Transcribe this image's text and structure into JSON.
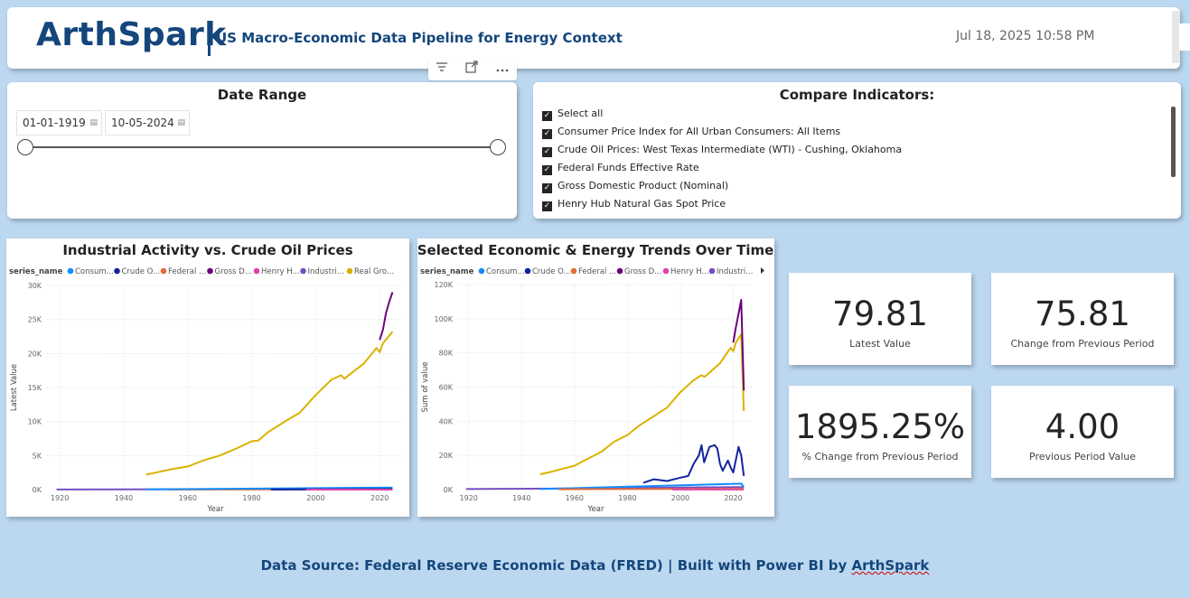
{
  "header": {
    "brand": "ArthSpark",
    "subtitle": "US Macro-Economic Data Pipeline for Energy Context",
    "timestamp": "Jul 18, 2025 10:58 PM"
  },
  "date_range": {
    "title": "Date Range",
    "start": "01-01-1919",
    "end": "10-05-2024",
    "slider_start_fraction": 0,
    "slider_end_fraction": 1
  },
  "indicators": {
    "title": "Compare Indicators:",
    "items": [
      {
        "label": "Select all",
        "checked": true
      },
      {
        "label": "Consumer Price Index for All Urban Consumers: All Items",
        "checked": true
      },
      {
        "label": "Crude Oil Prices: West Texas Intermediate (WTI) - Cushing, Oklahoma",
        "checked": true
      },
      {
        "label": "Federal Funds Effective Rate",
        "checked": true
      },
      {
        "label": "Gross Domestic Product (Nominal)",
        "checked": true
      },
      {
        "label": "Henry Hub Natural Gas Spot Price",
        "checked": true
      }
    ]
  },
  "chart1": {
    "title": "Industrial Activity vs. Crude Oil Prices",
    "legend_title": "series_name",
    "legend": [
      {
        "label": "Consum...",
        "color": "#118dff"
      },
      {
        "label": "Crude O...",
        "color": "#12239e"
      },
      {
        "label": "Federal ...",
        "color": "#e66c37"
      },
      {
        "label": "Gross D...",
        "color": "#6b007b"
      },
      {
        "label": "Henry H...",
        "color": "#e044a7"
      },
      {
        "label": "Industri...",
        "color": "#744ec2"
      },
      {
        "label": "Real Gro...",
        "color": "#d9b300"
      }
    ],
    "ylabel": "Latest Value",
    "xlabel": "Year",
    "yticks": [
      "30K",
      "25K",
      "20K",
      "15K",
      "10K",
      "5K",
      "0K"
    ],
    "xticks": [
      "1920",
      "1940",
      "1960",
      "1980",
      "2000",
      "2020"
    ]
  },
  "chart2": {
    "title": "Selected Economic & Energy Trends Over Time",
    "legend_title": "series_name",
    "legend": [
      {
        "label": "Consum...",
        "color": "#118dff"
      },
      {
        "label": "Crude O...",
        "color": "#12239e"
      },
      {
        "label": "Federal ...",
        "color": "#e66c37"
      },
      {
        "label": "Gross D...",
        "color": "#6b007b"
      },
      {
        "label": "Henry H...",
        "color": "#e044a7"
      },
      {
        "label": "Industri...",
        "color": "#744ec2"
      }
    ],
    "ylabel": "Sum of value",
    "xlabel": "Year",
    "yticks": [
      "120K",
      "100K",
      "80K",
      "60K",
      "40K",
      "20K",
      "0K"
    ],
    "xticks": [
      "1920",
      "1940",
      "1960",
      "1980",
      "2000",
      "2020"
    ]
  },
  "chart_data": [
    {
      "type": "line",
      "title": "Industrial Activity vs. Crude Oil Prices",
      "xlabel": "Year",
      "ylabel": "Latest Value",
      "xlim": [
        1916,
        2027
      ],
      "ylim": [
        0,
        30000
      ],
      "legend_title": "series_name",
      "legend_position": "top",
      "grid": true,
      "series": [
        {
          "name": "Real Gro...",
          "color": "#d9b300",
          "x": [
            1947,
            1950,
            1955,
            1960,
            1965,
            1970,
            1975,
            1980,
            1982,
            1985,
            1990,
            1995,
            2000,
            2005,
            2008,
            2009,
            2010,
            2015,
            2019,
            2020,
            2021,
            2024
          ],
          "y": [
            2200,
            2500,
            3000,
            3400,
            4300,
            5000,
            6000,
            7100,
            7200,
            8400,
            9900,
            11300,
            13900,
            16200,
            16800,
            16300,
            16700,
            18500,
            20800,
            20200,
            21500,
            23200
          ]
        },
        {
          "name": "Gross D...",
          "color": "#6b007b",
          "x": [
            2020,
            2021,
            2022,
            2023,
            2024
          ],
          "y": [
            22000,
            23500,
            26000,
            27600,
            29000
          ]
        },
        {
          "name": "Industri...",
          "color": "#744ec2",
          "x": [
            1919,
            2024
          ],
          "y": [
            10,
            100
          ]
        },
        {
          "name": "Federal ...",
          "color": "#e66c37",
          "x": [
            1954,
            2024
          ],
          "y": [
            10,
            50
          ]
        },
        {
          "name": "Consum...",
          "color": "#118dff",
          "x": [
            1947,
            2024
          ],
          "y": [
            20,
            310
          ]
        },
        {
          "name": "Crude O...",
          "color": "#12239e",
          "x": [
            1986,
            2024
          ],
          "y": [
            15,
            80
          ]
        },
        {
          "name": "Henry H...",
          "color": "#e044a7",
          "x": [
            1997,
            2024
          ],
          "y": [
            3,
            5
          ]
        }
      ]
    },
    {
      "type": "line",
      "title": "Selected Economic & Energy Trends Over Time",
      "xlabel": "Year",
      "ylabel": "Sum of value",
      "xlim": [
        1916,
        2027
      ],
      "ylim": [
        0,
        120000
      ],
      "legend_title": "series_name",
      "legend_position": "top",
      "grid": true,
      "series": [
        {
          "color": "#d9b300",
          "x": [
            1947,
            1950,
            1955,
            1960,
            1965,
            1970,
            1975,
            1980,
            1985,
            1990,
            1995,
            2000,
            2005,
            2008,
            2009,
            2010,
            2015,
            2019,
            2020,
            2021,
            2023,
            2024
          ],
          "y": [
            9000,
            10000,
            12000,
            14000,
            18000,
            22000,
            28000,
            32000,
            38000,
            43000,
            48000,
            57000,
            64000,
            67000,
            66000,
            67000,
            74000,
            83000,
            81000,
            86000,
            91000,
            46000
          ]
        },
        {
          "name": "Gross D...",
          "color": "#6b007b",
          "x": [
            2020,
            2021,
            2022,
            2023,
            2024
          ],
          "y": [
            86000,
            95000,
            103000,
            111000,
            58000
          ]
        },
        {
          "name": "Crude O...",
          "color": "#12239e",
          "x": [
            1986,
            1990,
            1995,
            2000,
            2003,
            2005,
            2007,
            2008,
            2009,
            2011,
            2013,
            2014,
            2015,
            2016,
            2018,
            2019,
            2020,
            2022,
            2023,
            2024
          ],
          "y": [
            4000,
            6000,
            5000,
            7000,
            8000,
            15000,
            20000,
            26000,
            16000,
            25000,
            26000,
            24000,
            15000,
            11000,
            17000,
            13000,
            10000,
            25000,
            20000,
            8000
          ]
        },
        {
          "name": "Industri...",
          "color": "#744ec2",
          "x": [
            1919,
            1960,
            2000,
            2024
          ],
          "y": [
            300,
            700,
            1200,
            1500
          ]
        },
        {
          "name": "Consum...",
          "color": "#118dff",
          "x": [
            1947,
            2023,
            2024
          ],
          "y": [
            300,
            3500,
            1500
          ]
        },
        {
          "name": "Federal ...",
          "color": "#e66c37",
          "x": [
            1954,
            2024
          ],
          "y": [
            200,
            500
          ]
        },
        {
          "name": "Henry H...",
          "color": "#e044a7",
          "x": [
            1997,
            2024
          ],
          "y": [
            50,
            60
          ]
        }
      ]
    }
  ],
  "kpis": [
    {
      "value": "79.81",
      "label": "Latest Value"
    },
    {
      "value": "75.81",
      "label": "Change from Previous Period"
    },
    {
      "value": "1895.25%",
      "label": "% Change from Previous Period"
    },
    {
      "value": "4.00",
      "label": "Previous Period Value"
    }
  ],
  "footer": {
    "text": "Data Source: Federal Reserve Economic Data (FRED) | Built with Power BI by ",
    "link": "ArthSpark"
  },
  "colors": {
    "page_background": "#bcd8f0",
    "brand": "#14467c"
  },
  "toolbar_icons": [
    "filter-icon",
    "focus-mode-icon",
    "more-options-icon"
  ]
}
